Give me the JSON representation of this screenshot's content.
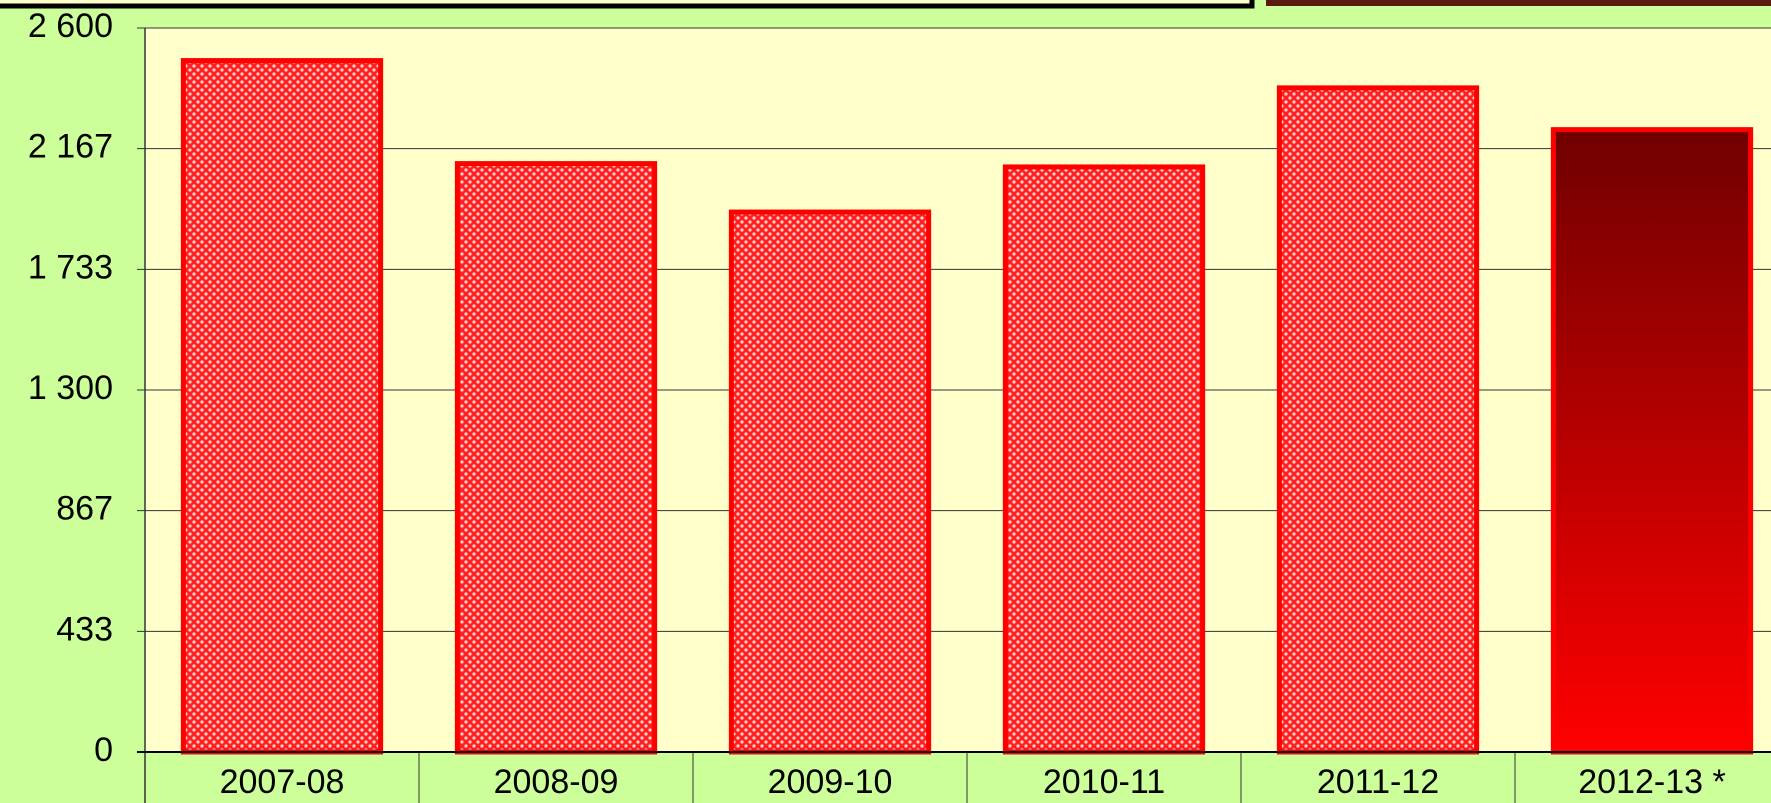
{
  "chart_data": {
    "type": "bar",
    "categories": [
      "2007-08",
      "2008-09",
      "2009-10",
      "2010-11",
      "2011-12",
      "2012-13 *"
    ],
    "values": [
      2483,
      2113,
      1939,
      2101,
      2385,
      2235
    ],
    "color": "#ff0000",
    "ylim": [
      0,
      2600
    ],
    "yticks": [
      0,
      433,
      867,
      {
        "value": 1300,
        "label": "1 300"
      },
      {
        "value": 1733,
        "label": "1 733"
      },
      {
        "value": 2167,
        "label": "2 167"
      },
      {
        "value": 2600,
        "label": "2 600"
      }
    ],
    "grid": true
  }
}
